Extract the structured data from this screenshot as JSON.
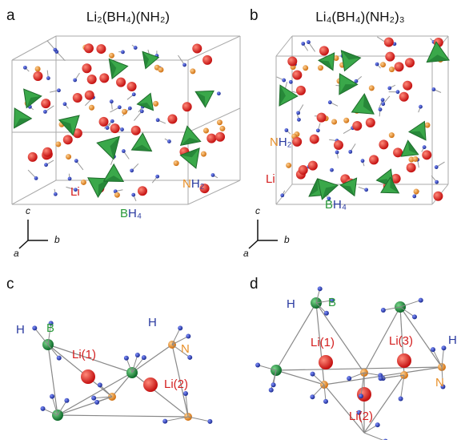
{
  "panels": [
    {
      "letter": "a",
      "title": "Li₂(BH₄)(NH₂)",
      "species": [
        {
          "parts": [
            "Li"
          ]
        },
        {
          "parts": [
            "N",
            "H₂"
          ]
        },
        {
          "parts": [
            "B",
            "H₄"
          ]
        }
      ],
      "axes": [
        "c",
        "b",
        "a"
      ]
    },
    {
      "letter": "b",
      "title": "Li₄(BH₄)(NH₂)₃",
      "species": [
        {
          "parts": [
            "N",
            "H₂"
          ]
        },
        {
          "parts": [
            "Li"
          ]
        },
        {
          "parts": [
            "B",
            "H₄"
          ]
        }
      ],
      "axes": [
        "c",
        "b",
        "a"
      ]
    },
    {
      "letter": "c",
      "labels": [
        "H",
        "B",
        "Li(1)",
        "H",
        "N",
        "Li(2)"
      ]
    },
    {
      "letter": "d",
      "labels": [
        "H",
        "B",
        "Li(1)",
        "Li(3)",
        "H",
        "Li(2)",
        "N"
      ]
    }
  ]
}
